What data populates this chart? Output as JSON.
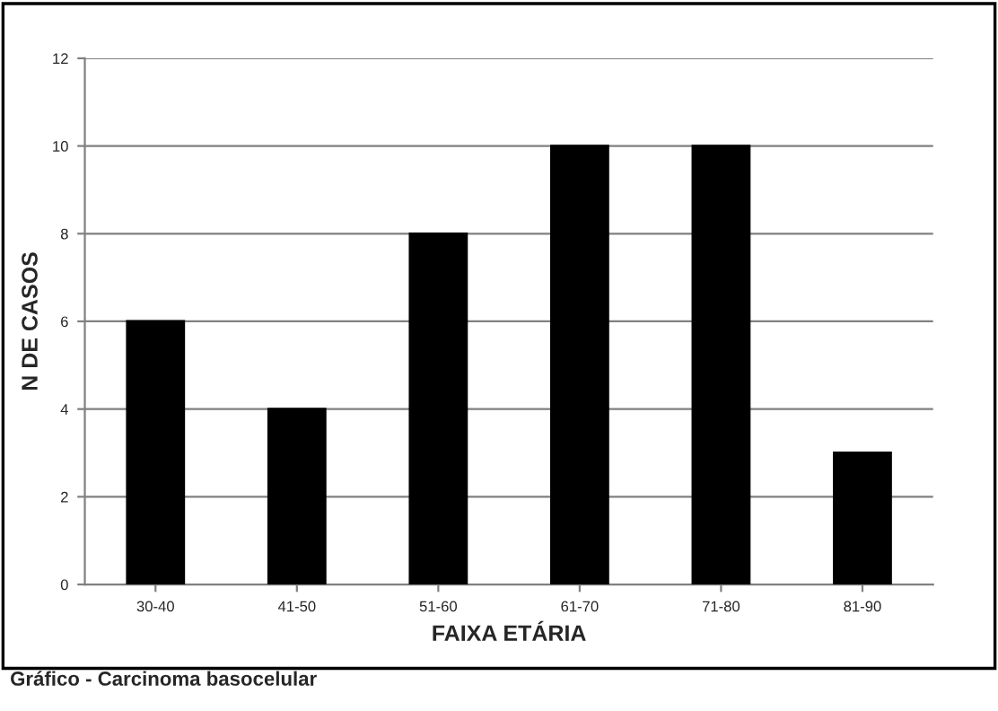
{
  "chart_data": {
    "type": "bar",
    "xlabel": "FAIXA ETÁRIA",
    "ylabel": "N DE CASOS",
    "categories": [
      "30-40",
      "41-50",
      "51-60",
      "61-70",
      "71-80",
      "81-90"
    ],
    "values": [
      6,
      4,
      8,
      10,
      10,
      3
    ],
    "color": "#000000",
    "ylim": [
      0,
      12
    ],
    "yticks": [
      0,
      2,
      4,
      6,
      8,
      10,
      12
    ],
    "grid": "y",
    "annotations": [
      "Gráfico - Carcinoma basocelular"
    ]
  }
}
